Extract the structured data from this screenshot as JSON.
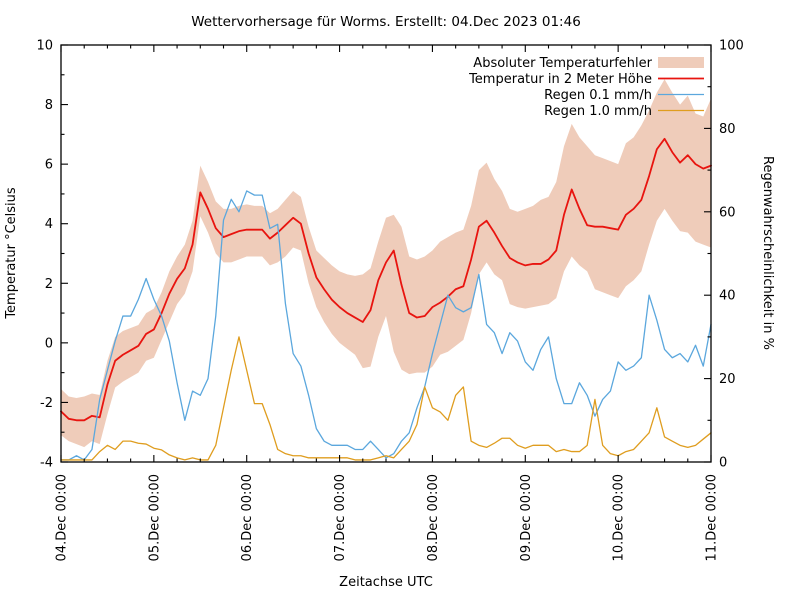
{
  "title": "Wettervorhersage für Worms. Erstellt: 04.Dec 2023 01:46",
  "axes": {
    "x": {
      "label": "Zeitachse UTC",
      "tick_labels": [
        "04.Dec 00:00",
        "05.Dec 00:00",
        "06.Dec 00:00",
        "07.Dec 00:00",
        "08.Dec 00:00",
        "09.Dec 00:00",
        "10.Dec 00:00",
        "11.Dec 00:00"
      ],
      "major_tick_hours": 24,
      "minor_tick_hours": 6,
      "range_hours": [
        0,
        168
      ]
    },
    "y_left": {
      "label": "Temperatur °Celsius",
      "ticks": [
        -4,
        -2,
        0,
        2,
        4,
        6,
        8,
        10
      ],
      "minor_step": 1,
      "range": [
        -4,
        10
      ]
    },
    "y_right": {
      "label": "Regenwahrscheinlichkeit in %",
      "ticks": [
        0,
        20,
        40,
        60,
        80,
        100
      ],
      "minor_step": 10,
      "range": [
        0,
        100
      ]
    }
  },
  "legend": {
    "items": [
      {
        "label": "Absoluter Temperaturfehler",
        "swatch": "band",
        "color": "#efccba"
      },
      {
        "label": "Temperatur in 2 Meter Höhe",
        "swatch": "line",
        "color": "#e8140f"
      },
      {
        "label": "Regen 0.1 mm/h",
        "swatch": "line",
        "color": "#5ba7dd"
      },
      {
        "label": "Regen 1.0 mm/h",
        "swatch": "line",
        "color": "#df9d1f"
      }
    ]
  },
  "colors": {
    "border": "#000000",
    "background": "#ffffff",
    "band_fill": "#efccba",
    "temperature_line": "#e8140f",
    "rain01_line": "#5ba7dd",
    "rain10_line": "#df9d1f"
  },
  "chart_data": {
    "type": "line",
    "title": "Wettervorhersage für Worms. Erstellt: 04.Dec 2023 01:46",
    "xlabel": "Zeitachse UTC",
    "ylabel_left": "Temperatur °Celsius",
    "ylabel_right": "Regenwahrscheinlichkeit in %",
    "x_unit": "hours since 04.Dec 2023 00:00 UTC",
    "xlim_hours": [
      0,
      168
    ],
    "ylim_left": [
      -4,
      10
    ],
    "ylim_right": [
      0,
      100
    ],
    "grid": false,
    "legend_position": "top-right-inside",
    "x_hours": [
      0,
      2,
      4,
      6,
      8,
      10,
      12,
      14,
      16,
      18,
      20,
      22,
      24,
      26,
      28,
      30,
      32,
      34,
      36,
      38,
      40,
      42,
      44,
      46,
      48,
      50,
      52,
      54,
      56,
      58,
      60,
      62,
      64,
      66,
      68,
      70,
      72,
      74,
      76,
      78,
      80,
      82,
      84,
      86,
      88,
      90,
      92,
      94,
      96,
      98,
      100,
      102,
      104,
      106,
      108,
      110,
      112,
      114,
      116,
      118,
      120,
      122,
      124,
      126,
      128,
      130,
      132,
      134,
      136,
      138,
      140,
      142,
      144,
      146,
      148,
      150,
      152,
      154,
      156,
      158,
      160,
      162,
      164,
      166,
      168
    ],
    "series": [
      {
        "name": "Absoluter Temperaturfehler",
        "type": "band",
        "axis": "left",
        "color": "#efccba",
        "upper": [
          -1.55,
          -1.8,
          -1.85,
          -1.8,
          -1.7,
          -1.75,
          -0.6,
          0.2,
          0.4,
          0.5,
          0.6,
          1.0,
          1.15,
          1.7,
          2.4,
          2.9,
          3.3,
          4.1,
          5.95,
          5.4,
          4.75,
          4.5,
          4.5,
          4.6,
          4.65,
          4.6,
          4.6,
          4.35,
          4.5,
          4.8,
          5.1,
          4.9,
          3.9,
          3.1,
          2.85,
          2.6,
          2.4,
          2.3,
          2.25,
          2.3,
          2.5,
          3.4,
          4.2,
          4.3,
          3.9,
          2.9,
          2.8,
          2.9,
          3.1,
          3.4,
          3.55,
          3.7,
          3.8,
          4.6,
          5.8,
          6.05,
          5.5,
          5.1,
          4.5,
          4.4,
          4.5,
          4.6,
          4.8,
          4.9,
          5.4,
          6.6,
          7.35,
          6.9,
          6.6,
          6.3,
          6.2,
          6.1,
          6.0,
          6.7,
          6.9,
          7.3,
          7.8,
          8.4,
          8.85,
          8.4,
          8.0,
          8.3,
          7.7,
          7.6,
          8.2
        ],
        "lower": [
          -3.1,
          -3.3,
          -3.4,
          -3.5,
          -3.3,
          -3.4,
          -2.4,
          -1.5,
          -1.3,
          -1.15,
          -1.0,
          -0.6,
          -0.5,
          0.1,
          0.7,
          1.3,
          1.65,
          2.4,
          4.25,
          3.7,
          3.0,
          2.7,
          2.7,
          2.8,
          2.9,
          2.9,
          2.9,
          2.6,
          2.7,
          2.9,
          3.2,
          3.1,
          2.0,
          1.2,
          0.7,
          0.3,
          0.0,
          -0.2,
          -0.4,
          -0.85,
          -0.8,
          0.2,
          0.9,
          -0.3,
          -0.9,
          -1.05,
          -1.0,
          -1.0,
          -0.8,
          -0.4,
          -0.3,
          -0.1,
          0.1,
          1.0,
          2.3,
          2.7,
          2.3,
          2.1,
          1.3,
          1.2,
          1.15,
          1.2,
          1.25,
          1.3,
          1.5,
          2.4,
          2.9,
          2.6,
          2.4,
          1.8,
          1.7,
          1.6,
          1.5,
          1.9,
          2.1,
          2.4,
          3.3,
          4.1,
          4.5,
          4.1,
          3.75,
          3.7,
          3.4,
          3.3,
          3.2
        ]
      },
      {
        "name": "Temperatur in 2 Meter Höhe",
        "type": "line",
        "axis": "left",
        "unit": "°C",
        "color": "#e8140f",
        "width": 1.8,
        "values": [
          -2.3,
          -2.55,
          -2.6,
          -2.6,
          -2.45,
          -2.5,
          -1.4,
          -0.6,
          -0.4,
          -0.25,
          -0.1,
          0.3,
          0.45,
          1.0,
          1.65,
          2.15,
          2.5,
          3.3,
          5.05,
          4.5,
          3.85,
          3.55,
          3.65,
          3.75,
          3.8,
          3.8,
          3.8,
          3.5,
          3.7,
          3.95,
          4.2,
          4.0,
          3.0,
          2.2,
          1.8,
          1.45,
          1.2,
          1.0,
          0.85,
          0.7,
          1.1,
          2.1,
          2.7,
          3.1,
          1.95,
          1.0,
          0.85,
          0.9,
          1.2,
          1.35,
          1.55,
          1.8,
          1.9,
          2.8,
          3.9,
          4.1,
          3.7,
          3.25,
          2.85,
          2.7,
          2.6,
          2.65,
          2.65,
          2.8,
          3.1,
          4.3,
          5.15,
          4.5,
          3.95,
          3.9,
          3.9,
          3.85,
          3.8,
          4.3,
          4.5,
          4.8,
          5.6,
          6.5,
          6.85,
          6.4,
          6.05,
          6.3,
          6.0,
          5.85,
          5.95
        ]
      },
      {
        "name": "Regen 0.1 mm/h",
        "type": "line",
        "axis": "right",
        "unit": "%",
        "color": "#5ba7dd",
        "width": 1.3,
        "values": [
          0.5,
          0.5,
          1.5,
          0.5,
          3,
          15,
          22,
          29,
          35,
          35,
          39,
          44,
          39,
          35,
          29,
          19,
          10,
          17,
          16,
          20,
          35,
          58,
          63,
          60,
          65,
          64,
          64,
          56,
          57,
          38,
          26,
          23,
          16,
          8,
          5,
          4,
          4,
          4,
          3,
          3,
          5,
          3,
          1,
          2,
          5,
          7,
          13,
          18,
          26,
          33,
          40,
          37,
          36,
          37,
          45,
          33,
          31,
          26,
          31,
          29,
          24,
          22,
          27,
          30,
          20,
          14,
          14,
          19,
          16,
          11,
          15,
          17,
          24,
          22,
          23,
          25,
          40,
          34,
          27,
          25,
          26,
          24,
          28,
          23,
          33
        ]
      },
      {
        "name": "Regen 1.0 mm/h",
        "type": "line",
        "axis": "right",
        "unit": "%",
        "color": "#df9d1f",
        "width": 1.3,
        "values": [
          0.5,
          0.5,
          0.5,
          0.5,
          0.5,
          2.5,
          4,
          3,
          5,
          5,
          4.5,
          4.3,
          3.3,
          2.9,
          1.7,
          1,
          0.5,
          1,
          0.5,
          0.5,
          4,
          13,
          22,
          30,
          22,
          14,
          14,
          9,
          3,
          2,
          1.5,
          1.5,
          1,
          1,
          1,
          1,
          1,
          1,
          0.5,
          0.5,
          0.5,
          1,
          1.5,
          1,
          3,
          5,
          9,
          18,
          13,
          12,
          10,
          16,
          18,
          5,
          4,
          3.5,
          4.5,
          5.7,
          5.7,
          4,
          3.3,
          4,
          4,
          4,
          2.5,
          3,
          2.5,
          2.5,
          4,
          15,
          4,
          2,
          1.5,
          2.5,
          3,
          5,
          7,
          13,
          6,
          5,
          4,
          3.5,
          4,
          5.5,
          7
        ]
      }
    ]
  }
}
